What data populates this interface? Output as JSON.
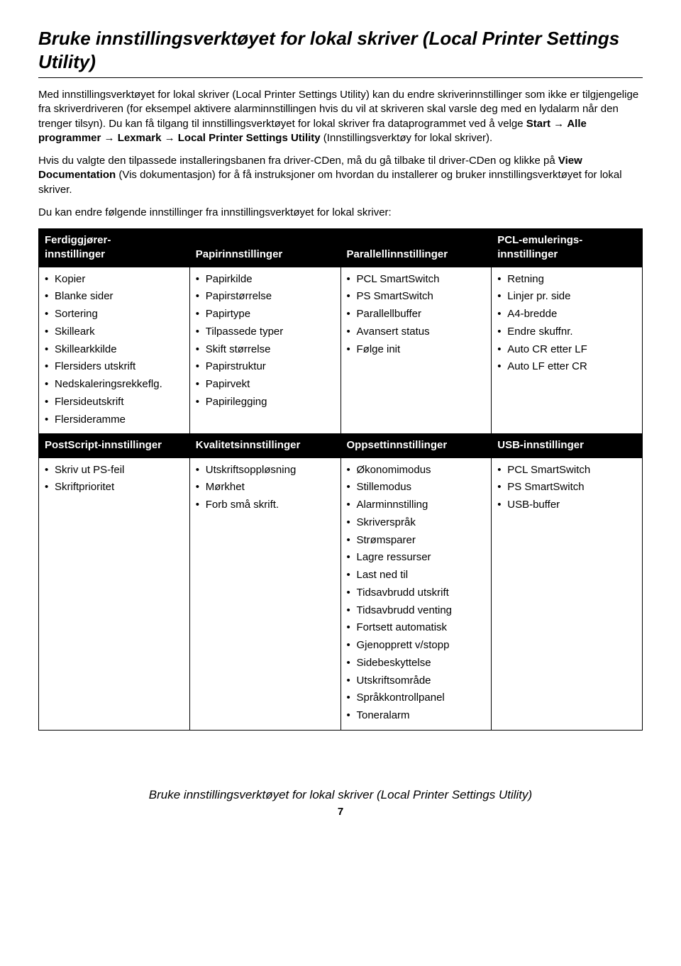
{
  "title": "Bruke innstillingsverktøyet for lokal skriver (Local Printer Settings Utility)",
  "para1_pre": "Med innstillingsverktøyet for lokal skriver (Local Printer Settings Utility) kan du endre skriverinnstillinger som ikke er tilgjengelige fra skriverdriveren (for eksempel aktivere alarminnstillingen hvis du vil at skriveren skal varsle deg med en lydalarm når den trenger tilsyn). Du kan få tilgang til innstillingsverktøyet for lokal skriver fra dataprogrammet ved å velge ",
  "start": "Start",
  "arrow": " → ",
  "alle": "Alle programmer",
  "lexmark": "Lexmark",
  "lpsu": "Local Printer Settings Utility",
  "para1_post": " (Innstillingsverktøy for lokal skriver).",
  "para2_pre": "Hvis du valgte den tilpassede installeringsbanen fra driver-CDen, må du gå tilbake til driver-CDen og klikke på ",
  "viewdoc": "View Documentation",
  "para2_post": " (Vis dokumentasjon) for å få instruksjoner om hvordan du installerer og bruker innstillingsverktøyet for lokal skriver.",
  "para3": "Du kan endre følgende innstillinger fra innstillingsverktøyet for lokal skriver:",
  "headers1": {
    "c1": "Ferdiggjører-\ninnstillinger",
    "c2": "Papirinnstillinger",
    "c3": "Parallellinnstillinger",
    "c4": "PCL-emulerings-\ninnstillinger"
  },
  "row1": {
    "c1": [
      "Kopier",
      "Blanke sider",
      "Sortering",
      "Skilleark",
      "Skillearkkilde",
      "Flersiders utskrift",
      "Nedskaleringsrekkeflg.",
      "Flersideutskrift",
      "Flersideramme"
    ],
    "c2": [
      "Papirkilde",
      "Papirstørrelse",
      "Papirtype",
      "Tilpassede typer",
      "Skift størrelse",
      "Papirstruktur",
      "Papirvekt",
      "Papirilegging"
    ],
    "c3": [
      "PCL SmartSwitch",
      "PS SmartSwitch",
      "Parallellbuffer",
      "Avansert status",
      "Følge init"
    ],
    "c4": [
      "Retning",
      "Linjer pr. side",
      "A4-bredde",
      "Endre skuffnr.",
      "Auto CR etter LF",
      "Auto LF etter CR"
    ]
  },
  "headers2": {
    "c1": "PostScript-innstillinger",
    "c2": "Kvalitetsinnstillinger",
    "c3": "Oppsettinnstillinger",
    "c4": "USB-innstillinger"
  },
  "row2": {
    "c1": [
      "Skriv ut PS-feil",
      "Skriftprioritet"
    ],
    "c2": [
      "Utskriftsoppløsning",
      "Mørkhet",
      "Forb små skrift."
    ],
    "c3": [
      "Økonomimodus",
      "Stillemodus",
      "Alarminnstilling",
      "Skriverspråk",
      "Strømsparer",
      "Lagre ressurser",
      "Last ned til",
      "Tidsavbrudd utskrift",
      "Tidsavbrudd venting",
      "Fortsett automatisk",
      "Gjenopprett v/stopp",
      "Sidebeskyttelse",
      "Utskriftsområde",
      "Språkkontrollpanel",
      "Toneralarm"
    ],
    "c4": [
      "PCL SmartSwitch",
      "PS SmartSwitch",
      "USB-buffer"
    ]
  },
  "footer": "Bruke innstillingsverktøyet for lokal skriver (Local Printer Settings Utility)",
  "pagenum": "7"
}
